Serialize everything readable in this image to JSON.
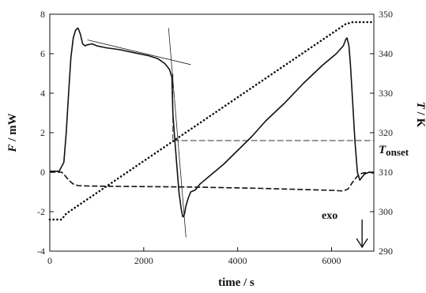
{
  "chart_data": {
    "type": "line",
    "xlabel": "time / s",
    "ylabel_left_var": "F",
    "ylabel_left_unit": " / mW",
    "ylabel_right_var": "T",
    "ylabel_right_unit": " / K",
    "xlim": [
      0,
      6900
    ],
    "ylim_left": [
      -4,
      8
    ],
    "ylim_right": [
      290,
      350
    ],
    "x_ticks": [
      0,
      2000,
      4000,
      6000
    ],
    "y_left_ticks": [
      -4,
      -2,
      0,
      2,
      4,
      6,
      8
    ],
    "y_right_ticks": [
      290,
      300,
      310,
      320,
      330,
      340,
      350
    ],
    "grid": false,
    "annotations": {
      "onset_var": "T",
      "onset_sub": "onset",
      "onset_value_K": 318,
      "onset_time": 2650,
      "exo_label": "exo",
      "exo_arrow_x": 6650,
      "exo_arrow_top": -2.4,
      "exo_arrow_bottom": -3.8
    },
    "series": [
      {
        "axis": "left",
        "style": "solid",
        "x": [
          0,
          200,
          300,
          350,
          400,
          450,
          500,
          550,
          600,
          650,
          700,
          750,
          800,
          900,
          1000,
          1200,
          1500,
          1800,
          2100,
          2300,
          2450,
          2550,
          2600,
          2620,
          2650,
          2700,
          2750,
          2800,
          2830,
          2850,
          2870,
          2900,
          2950,
          3000,
          3100,
          3200,
          3400,
          3700,
          4000,
          4300,
          4600,
          5000,
          5400,
          5800,
          6100,
          6250,
          6300,
          6330,
          6370,
          6400,
          6450,
          6500,
          6550,
          6600,
          6700,
          6800,
          6900
        ],
        "y": [
          0.05,
          0.05,
          0.5,
          2.0,
          4.0,
          5.8,
          6.8,
          7.2,
          7.3,
          7.0,
          6.5,
          6.4,
          6.45,
          6.5,
          6.4,
          6.3,
          6.2,
          6.05,
          5.9,
          5.75,
          5.5,
          5.2,
          4.8,
          3.0,
          2.0,
          0.5,
          -1.0,
          -1.9,
          -2.25,
          -2.25,
          -2.1,
          -1.7,
          -1.3,
          -1.0,
          -0.9,
          -0.6,
          -0.2,
          0.4,
          1.1,
          1.8,
          2.6,
          3.5,
          4.5,
          5.4,
          6.0,
          6.4,
          6.7,
          6.8,
          6.4,
          5.5,
          3.5,
          1.5,
          0.0,
          -0.4,
          -0.1,
          0.0,
          -0.05
        ]
      },
      {
        "axis": "left",
        "style": "dashed",
        "x": [
          0,
          250,
          300,
          400,
          500,
          600,
          800,
          1500,
          3000,
          4500,
          6000,
          6250,
          6350,
          6450,
          6550,
          6650,
          6800,
          6900
        ],
        "y": [
          0.0,
          0.0,
          -0.1,
          -0.4,
          -0.6,
          -0.68,
          -0.7,
          -0.72,
          -0.75,
          -0.82,
          -0.92,
          -0.95,
          -0.85,
          -0.5,
          -0.2,
          -0.05,
          0.0,
          0.0
        ],
        "name": ""
      },
      {
        "axis": "right",
        "style": "dotted",
        "x": [
          0,
          250,
          350,
          6300,
          6450,
          6900
        ],
        "y": [
          298,
          298,
          299.5,
          347.5,
          348,
          348
        ]
      }
    ],
    "tangents": [
      {
        "x": [
          800,
          3000
        ],
        "y": [
          6.7,
          5.45
        ]
      },
      {
        "x": [
          2530,
          2900
        ],
        "y": [
          7.3,
          -3.3
        ]
      }
    ],
    "onset_lines": [
      {
        "style": "dashed_vertical",
        "x": [
          2620,
          2620
        ],
        "y_left": [
          5.0,
          1.65
        ]
      },
      {
        "style": "dashed_horizontal",
        "x": [
          2620,
          6900
        ],
        "y_right": [
          318,
          318
        ]
      }
    ]
  }
}
